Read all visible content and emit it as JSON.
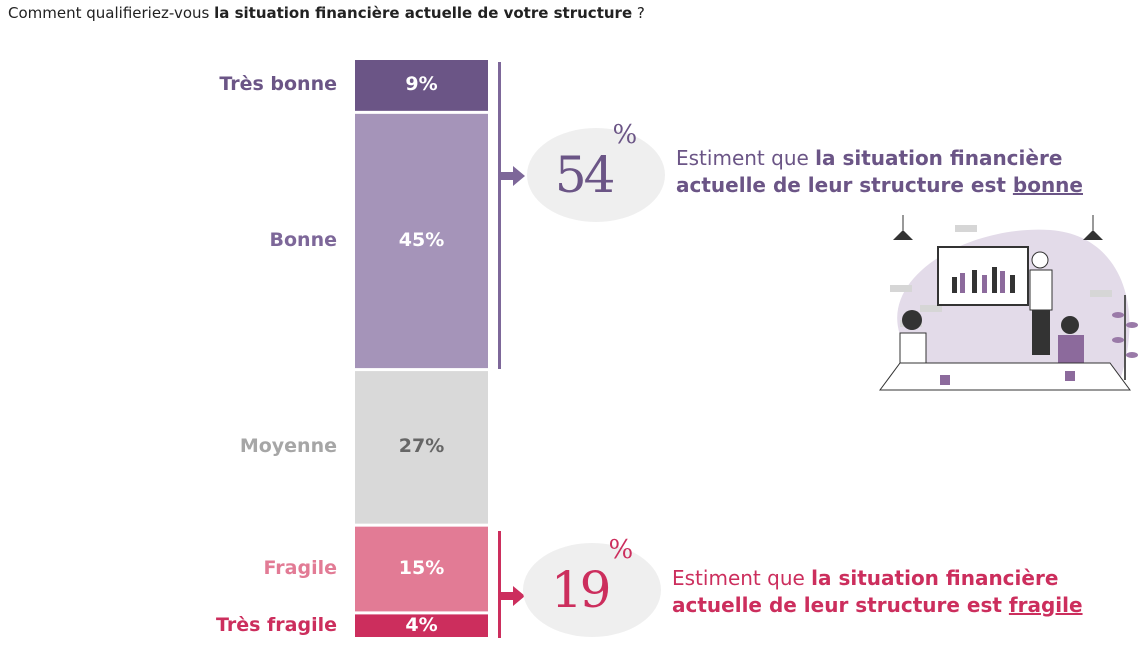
{
  "question": {
    "prefix": "Comment qualifieriez-vous ",
    "bold": "la situation financière actuelle de votre structure",
    "suffix": " ?"
  },
  "chart_data": {
    "type": "bar",
    "stacked": true,
    "orientation": "vertical",
    "categories": [
      "Très bonne",
      "Bonne",
      "Moyenne",
      "Fragile",
      "Très fragile"
    ],
    "values": [
      9,
      45,
      27,
      15,
      4
    ],
    "value_labels": [
      "9%",
      "45%",
      "27%",
      "15%",
      "4%"
    ],
    "colors": [
      "#6b5586",
      "#a594b9",
      "#d9d9d9",
      "#e27b95",
      "#cc2e5d"
    ],
    "label_colors": [
      "#6b5586",
      "#7d6799",
      "#a6a6a6",
      "#e27b95",
      "#cc2e5d"
    ],
    "value_text_colors": [
      "#ffffff",
      "#ffffff",
      "#666666",
      "#ffffff",
      "#ffffff"
    ]
  },
  "callouts": [
    {
      "value": "54",
      "unit": "%",
      "color": "#6b5586",
      "text_prefix": "Estiment que ",
      "text_bold": "la situation financière",
      "text_line2": "actuelle de leur structure est ",
      "text_underlined": "bonne"
    },
    {
      "value": "19",
      "unit": "%",
      "color": "#cc2e5d",
      "text_prefix": "Estiment que ",
      "text_bold": "la situation financière",
      "text_line2": "actuelle de leur structure est ",
      "text_underlined": "fragile"
    }
  ]
}
